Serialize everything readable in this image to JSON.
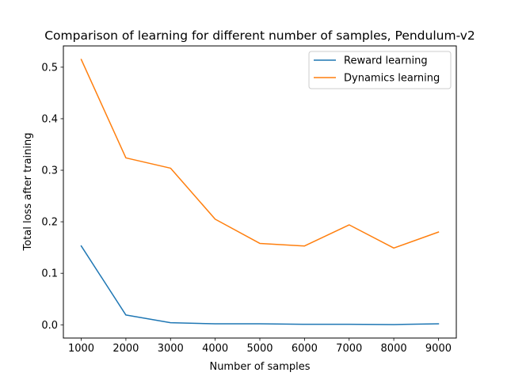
{
  "chart_data": {
    "type": "line",
    "title": "Comparison of learning for different number of samples, Pendulum-v2",
    "xlabel": "Number of samples",
    "ylabel": "Total loss after training",
    "x": [
      1000,
      2000,
      3000,
      4000,
      5000,
      6000,
      7000,
      8000,
      9000
    ],
    "xticks": [
      1000,
      2000,
      3000,
      4000,
      5000,
      6000,
      7000,
      8000,
      9000
    ],
    "yticks": [
      0.0,
      0.1,
      0.2,
      0.3,
      0.4,
      0.5
    ],
    "ytick_labels": [
      "0.0",
      "0.1",
      "0.2",
      "0.3",
      "0.4",
      "0.5"
    ],
    "xlim": [
      600,
      9400
    ],
    "ylim": [
      -0.0257,
      0.5413
    ],
    "series": [
      {
        "name": "Reward learning",
        "color": "#1f77b4",
        "values": [
          0.153,
          0.019,
          0.004,
          0.002,
          0.002,
          0.001,
          0.001,
          0.0005,
          0.002
        ]
      },
      {
        "name": "Dynamics learning",
        "color": "#ff7f0e",
        "values": [
          0.515,
          0.324,
          0.304,
          0.205,
          0.158,
          0.153,
          0.194,
          0.149,
          0.18
        ]
      }
    ],
    "legend": "upper right",
    "grid": false
  }
}
